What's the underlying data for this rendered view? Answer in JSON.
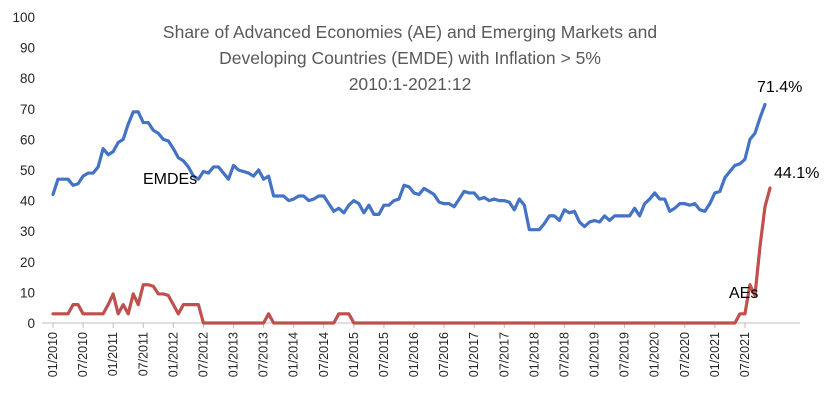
{
  "chart_data": {
    "type": "line",
    "title_lines": [
      "Share of Advanced Economies (AE) and Emerging Markets and",
      "Developing Countries (EMDE) with Inflation > 5%",
      "2010:1-2021:12"
    ],
    "ylim": [
      0,
      100
    ],
    "yticks": [
      "0",
      "10",
      "20",
      "30",
      "40",
      "50",
      "60",
      "70",
      "80",
      "90",
      "100"
    ],
    "x_start": "01/2010",
    "x_end": "12/2021",
    "xticks": [
      "01/2010",
      "07/2010",
      "01/2011",
      "07/2011",
      "01/2012",
      "07/2012",
      "01/2013",
      "07/2013",
      "01/2014",
      "07/2014",
      "01/2015",
      "07/2015",
      "01/2016",
      "07/2016",
      "01/2017",
      "07/2017",
      "01/2018",
      "07/2018",
      "01/2019",
      "07/2019",
      "01/2020",
      "07/2020",
      "01/2021",
      "07/2021"
    ],
    "grid": false,
    "legend": "none",
    "series": [
      {
        "name": "EMDEs",
        "color": "#4472C4",
        "values": [
          42,
          47,
          47,
          47,
          45,
          45.5,
          48,
          49,
          49,
          51,
          57,
          55,
          56,
          59,
          60,
          65,
          69,
          69,
          65.5,
          65.5,
          63,
          62,
          60,
          59.5,
          57,
          54,
          53,
          51,
          48,
          47,
          49.5,
          49,
          51,
          51,
          49,
          47,
          51.5,
          50,
          49.5,
          49,
          48,
          50,
          47,
          48,
          41.5,
          41.5,
          41.5,
          40,
          40.5,
          41.5,
          41.5,
          40,
          40.5,
          41.5,
          41.5,
          39,
          36.5,
          37.5,
          36,
          38.5,
          40,
          39,
          36,
          38.5,
          35.5,
          35.5,
          38.5,
          38.5,
          40,
          40.5,
          45,
          44.5,
          42.5,
          42,
          44,
          43,
          42,
          39.5,
          39,
          39,
          38,
          40.5,
          43,
          42.5,
          42.5,
          40.5,
          41,
          40,
          40.5,
          40,
          40,
          39.5,
          37,
          40.5,
          38.5,
          30.5,
          30.5,
          30.5,
          32.5,
          35,
          35,
          33.5,
          37,
          36,
          36.5,
          33,
          31.5,
          33,
          33.5,
          33,
          35,
          33.5,
          35,
          35,
          35,
          35,
          37.5,
          35,
          39,
          40.5,
          42.5,
          40.5,
          40.5,
          36.5,
          37.5,
          39,
          39,
          38.5,
          39,
          37,
          36.5,
          39,
          42.5,
          43,
          47.5,
          49.5,
          51.5,
          52,
          53.5,
          60,
          62,
          67,
          71.4
        ]
      },
      {
        "name": "AEs",
        "color": "#C0504D",
        "values": [
          3,
          3,
          3,
          3,
          6,
          6,
          3,
          3,
          3,
          3,
          3,
          6,
          9.5,
          3,
          6,
          3,
          9.5,
          6,
          12.5,
          12.5,
          12,
          9.5,
          9.5,
          9,
          6,
          3,
          6,
          6,
          6,
          6,
          0,
          0,
          0,
          0,
          0,
          0,
          0,
          0,
          0,
          0,
          0,
          0,
          0,
          3,
          0,
          0,
          0,
          0,
          0,
          0,
          0,
          0,
          0,
          0,
          0,
          0,
          0,
          3,
          3,
          3,
          0,
          0,
          0,
          0,
          0,
          0,
          0,
          0,
          0,
          0,
          0,
          0,
          0,
          0,
          0,
          0,
          0,
          0,
          0,
          0,
          0,
          0,
          0,
          0,
          0,
          0,
          0,
          0,
          0,
          0,
          0,
          0,
          0,
          0,
          0,
          0,
          0,
          0,
          0,
          0,
          0,
          0,
          0,
          0,
          0,
          0,
          0,
          0,
          0,
          0,
          0,
          0,
          0,
          0,
          0,
          0,
          0,
          0,
          0,
          0,
          0,
          0,
          0,
          0,
          0,
          0,
          0,
          0,
          0,
          0,
          0,
          0,
          0,
          0,
          0,
          0,
          0,
          3,
          3,
          12.5,
          9,
          25,
          38,
          44.1
        ]
      }
    ],
    "annotations": {
      "emde_series_label": "EMDEs",
      "ae_series_label": "AEs",
      "emde_end_label": "71.4%",
      "ae_end_label": "44.1%"
    }
  }
}
